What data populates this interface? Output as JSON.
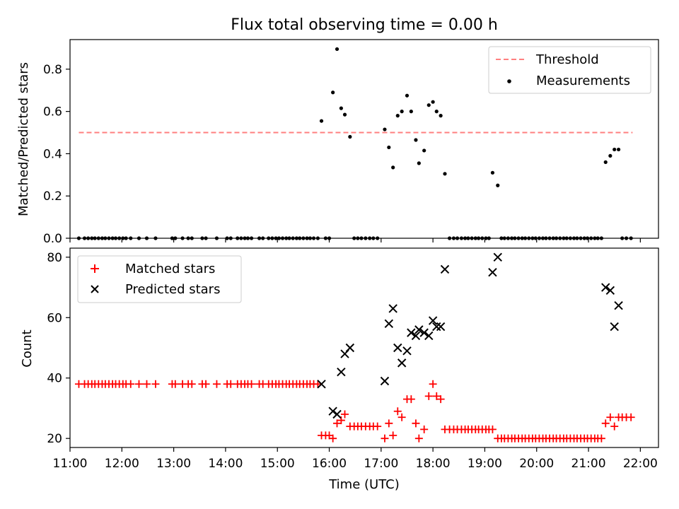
{
  "title": "Flux total observing time = 0.00 h",
  "chart_data": [
    {
      "type": "scatter",
      "ylabel": "Matched/Predicted stars",
      "xlabel": "",
      "xlim": [
        11.0,
        22.35
      ],
      "ylim": [
        0.0,
        0.94
      ],
      "yticks": [
        0.0,
        0.2,
        0.4,
        0.6,
        0.8
      ],
      "ytick_labels": [
        "0.0",
        "0.2",
        "0.4",
        "0.6",
        "0.8"
      ],
      "legend": {
        "position": "upper right",
        "entries": [
          "Threshold",
          "Measurements"
        ]
      },
      "threshold": {
        "name": "Threshold",
        "value": 0.5,
        "x_range": [
          11.17,
          21.85
        ],
        "color": "#ff7f7f",
        "style": "dashed"
      },
      "series": [
        {
          "name": "Measurements",
          "color": "#000000",
          "marker": "dot",
          "x": [
            11.17,
            11.28,
            11.35,
            11.42,
            11.48,
            11.55,
            11.62,
            11.68,
            11.75,
            11.82,
            11.88,
            11.95,
            12.02,
            12.08,
            12.17,
            12.33,
            12.48,
            12.65,
            12.97,
            13.03,
            13.17,
            13.28,
            13.35,
            13.55,
            13.62,
            13.83,
            14.03,
            14.1,
            14.23,
            14.3,
            14.37,
            14.43,
            14.5,
            14.65,
            14.72,
            14.83,
            14.9,
            14.97,
            15.03,
            15.1,
            15.17,
            15.23,
            15.3,
            15.37,
            15.43,
            15.5,
            15.57,
            15.63,
            15.7,
            15.78,
            15.85,
            15.93,
            16.0,
            16.07,
            16.15,
            16.23,
            16.3,
            16.4,
            16.48,
            16.55,
            16.62,
            16.7,
            16.78,
            16.85,
            16.93,
            17.07,
            17.15,
            17.23,
            17.32,
            17.4,
            17.5,
            17.58,
            17.67,
            17.73,
            17.83,
            17.92,
            18.0,
            18.07,
            18.15,
            18.23,
            18.32,
            18.4,
            18.47,
            18.55,
            18.62,
            18.68,
            18.75,
            18.82,
            18.88,
            18.95,
            19.02,
            19.08,
            19.15,
            19.25,
            19.32,
            19.38,
            19.45,
            19.52,
            19.58,
            19.65,
            19.72,
            19.78,
            19.85,
            19.92,
            19.98,
            20.05,
            20.12,
            20.18,
            20.25,
            20.32,
            20.38,
            20.45,
            20.52,
            20.58,
            20.65,
            20.72,
            20.78,
            20.85,
            20.92,
            20.98,
            21.05,
            21.12,
            21.18,
            21.25,
            21.33,
            21.42,
            21.5,
            21.58,
            21.65,
            21.73,
            21.82
          ],
          "y": [
            0,
            0,
            0,
            0,
            0,
            0,
            0,
            0,
            0,
            0,
            0,
            0,
            0,
            0,
            0,
            0,
            0,
            0,
            0,
            0,
            0,
            0,
            0,
            0,
            0,
            0,
            0,
            0,
            0,
            0,
            0,
            0,
            0,
            0,
            0,
            0,
            0,
            0,
            0,
            0,
            0,
            0,
            0,
            0,
            0,
            0,
            0,
            0,
            0,
            0,
            0.555,
            0,
            0,
            0.69,
            0.895,
            0.615,
            0.585,
            0.48,
            0,
            0,
            0,
            0,
            0,
            0,
            0,
            0.515,
            0.43,
            0.335,
            0.58,
            0.6,
            0.675,
            0.6,
            0.465,
            0.355,
            0.415,
            0.63,
            0.645,
            0.6,
            0.58,
            0.305,
            0,
            0,
            0,
            0,
            0,
            0,
            0,
            0,
            0,
            0,
            0,
            0,
            0.31,
            0.25,
            0,
            0,
            0,
            0,
            0,
            0,
            0,
            0,
            0,
            0,
            0,
            0,
            0,
            0,
            0,
            0,
            0,
            0,
            0,
            0,
            0,
            0,
            0,
            0,
            0,
            0,
            0,
            0,
            0,
            0,
            0.36,
            0.39,
            0.42,
            0.42,
            0,
            0,
            0
          ]
        }
      ]
    },
    {
      "type": "scatter",
      "ylabel": "Count",
      "xlabel": "Time (UTC)",
      "xlim": [
        11.0,
        22.35
      ],
      "ylim": [
        17,
        83
      ],
      "yticks": [
        20,
        40,
        60,
        80
      ],
      "ytick_labels": [
        "20",
        "40",
        "60",
        "80"
      ],
      "xticks": [
        11,
        12,
        13,
        14,
        15,
        16,
        17,
        18,
        19,
        20,
        21,
        22
      ],
      "xtick_labels": [
        "11:00",
        "12:00",
        "13:00",
        "14:00",
        "15:00",
        "16:00",
        "17:00",
        "18:00",
        "19:00",
        "20:00",
        "21:00",
        "22:00"
      ],
      "legend": {
        "position": "upper left",
        "entries": [
          "Matched stars",
          "Predicted stars"
        ]
      },
      "series": [
        {
          "name": "Matched stars",
          "color": "#ff0000",
          "marker": "plus",
          "x": [
            11.17,
            11.28,
            11.35,
            11.42,
            11.48,
            11.55,
            11.62,
            11.68,
            11.75,
            11.82,
            11.88,
            11.95,
            12.02,
            12.08,
            12.17,
            12.33,
            12.48,
            12.65,
            12.97,
            13.03,
            13.17,
            13.28,
            13.35,
            13.55,
            13.62,
            13.83,
            14.03,
            14.1,
            14.23,
            14.3,
            14.37,
            14.43,
            14.5,
            14.65,
            14.72,
            14.83,
            14.9,
            14.97,
            15.03,
            15.1,
            15.17,
            15.23,
            15.3,
            15.37,
            15.43,
            15.5,
            15.57,
            15.63,
            15.7,
            15.78,
            15.85,
            15.93,
            16.0,
            16.07,
            16.15,
            16.23,
            16.3,
            16.4,
            16.48,
            16.55,
            16.62,
            16.7,
            16.78,
            16.85,
            16.93,
            17.07,
            17.15,
            17.23,
            17.32,
            17.4,
            17.5,
            17.58,
            17.67,
            17.73,
            17.83,
            17.92,
            18.0,
            18.07,
            18.15,
            18.23,
            18.32,
            18.4,
            18.47,
            18.55,
            18.62,
            18.68,
            18.75,
            18.82,
            18.88,
            18.95,
            19.02,
            19.08,
            19.15,
            19.25,
            19.32,
            19.38,
            19.45,
            19.52,
            19.58,
            19.65,
            19.72,
            19.78,
            19.85,
            19.92,
            19.98,
            20.05,
            20.12,
            20.18,
            20.25,
            20.32,
            20.38,
            20.45,
            20.52,
            20.58,
            20.65,
            20.72,
            20.78,
            20.85,
            20.92,
            20.98,
            21.05,
            21.12,
            21.18,
            21.25,
            21.33,
            21.42,
            21.5,
            21.58,
            21.65,
            21.73,
            21.82
          ],
          "y": [
            38,
            38,
            38,
            38,
            38,
            38,
            38,
            38,
            38,
            38,
            38,
            38,
            38,
            38,
            38,
            38,
            38,
            38,
            38,
            38,
            38,
            38,
            38,
            38,
            38,
            38,
            38,
            38,
            38,
            38,
            38,
            38,
            38,
            38,
            38,
            38,
            38,
            38,
            38,
            38,
            38,
            38,
            38,
            38,
            38,
            38,
            38,
            38,
            38,
            38,
            21,
            21,
            21,
            20,
            25,
            26,
            28,
            24,
            24,
            24,
            24,
            24,
            24,
            24,
            24,
            20,
            25,
            21,
            29,
            27,
            33,
            33,
            25,
            20,
            23,
            34,
            38,
            34,
            33,
            23,
            23,
            23,
            23,
            23,
            23,
            23,
            23,
            23,
            23,
            23,
            23,
            23,
            23,
            20,
            20,
            20,
            20,
            20,
            20,
            20,
            20,
            20,
            20,
            20,
            20,
            20,
            20,
            20,
            20,
            20,
            20,
            20,
            20,
            20,
            20,
            20,
            20,
            20,
            20,
            20,
            20,
            20,
            20,
            20,
            25,
            27,
            24,
            27,
            27,
            27,
            27
          ]
        },
        {
          "name": "Predicted stars",
          "color": "#000000",
          "marker": "x",
          "x": [
            15.85,
            16.07,
            16.15,
            16.23,
            16.3,
            16.4,
            17.07,
            17.15,
            17.23,
            17.32,
            17.4,
            17.5,
            17.58,
            17.67,
            17.73,
            17.83,
            17.92,
            18.0,
            18.07,
            18.15,
            18.23,
            19.15,
            19.25,
            21.33,
            21.42,
            21.5,
            21.58
          ],
          "y": [
            38,
            29,
            28,
            42,
            48,
            50,
            39,
            58,
            63,
            50,
            45,
            49,
            55,
            54,
            56,
            55,
            54,
            59,
            57,
            57,
            76,
            75,
            80,
            70,
            69,
            57,
            64
          ]
        }
      ]
    }
  ]
}
